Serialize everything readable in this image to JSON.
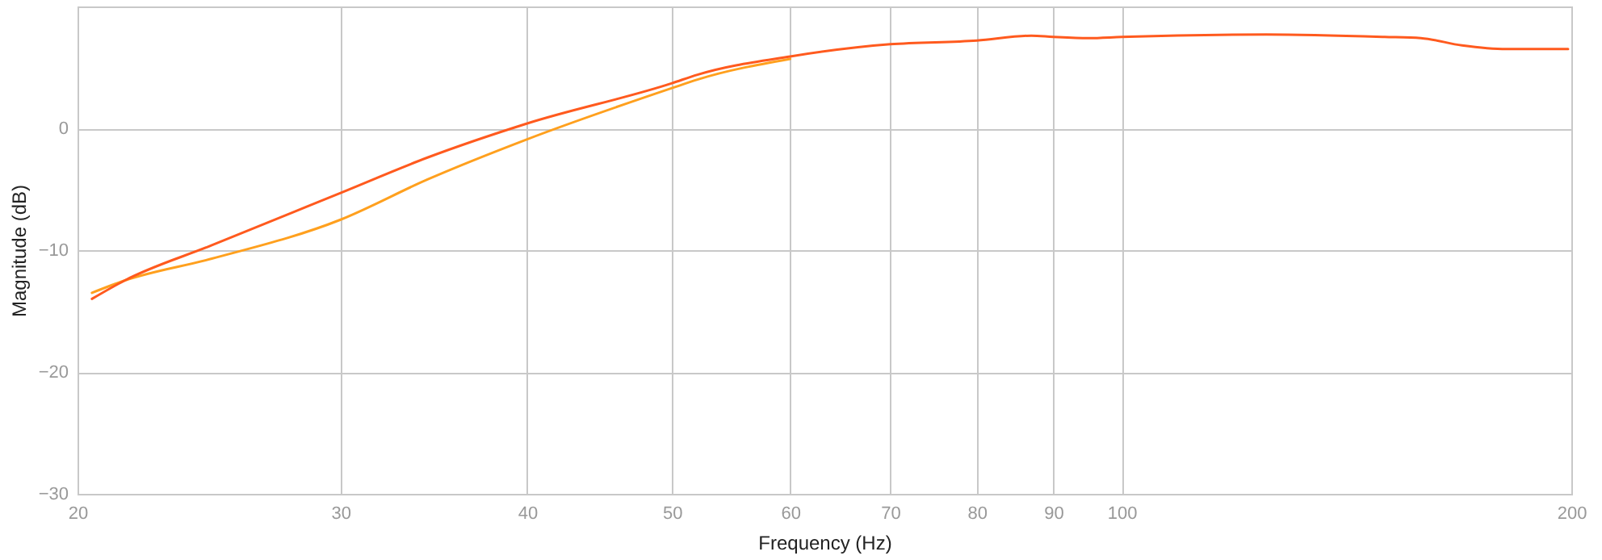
{
  "chart_data": {
    "type": "line",
    "xlabel": "Frequency (Hz)",
    "ylabel": "Magnitude (dB)",
    "log": "x",
    "xlim": [
      20,
      200
    ],
    "xticks": [
      20,
      30,
      40,
      50,
      60,
      70,
      80,
      90,
      100,
      200
    ],
    "ylim": [
      -30,
      10
    ],
    "yticks": [
      -30,
      -20,
      -10,
      0
    ],
    "grid": true,
    "series": [
      {
        "color": "#ffa01e",
        "x": [
          20.45,
          21.5,
          24.6,
          30,
          34.3,
          40,
          50,
          52,
          60
        ],
        "values": [
          -13.5,
          -12.5,
          -10.7,
          -7.5,
          -4.2,
          -0.9,
          3.3,
          4.0,
          5.7
        ]
      },
      {
        "color": "#ff5a1e",
        "x": [
          20.45,
          21.5,
          24.6,
          30,
          34.3,
          40,
          50,
          52,
          60,
          70,
          80,
          87,
          90,
          95,
          100,
          125,
          150,
          158.6,
          169,
          181,
          199
        ],
        "values": [
          -14.0,
          -12.5,
          -9.6,
          -5.3,
          -2.4,
          0.4,
          3.7,
          4.4,
          5.9,
          6.9,
          7.2,
          7.6,
          7.5,
          7.4,
          7.5,
          7.7,
          7.5,
          7.4,
          6.8,
          6.5,
          6.5
        ]
      }
    ]
  }
}
